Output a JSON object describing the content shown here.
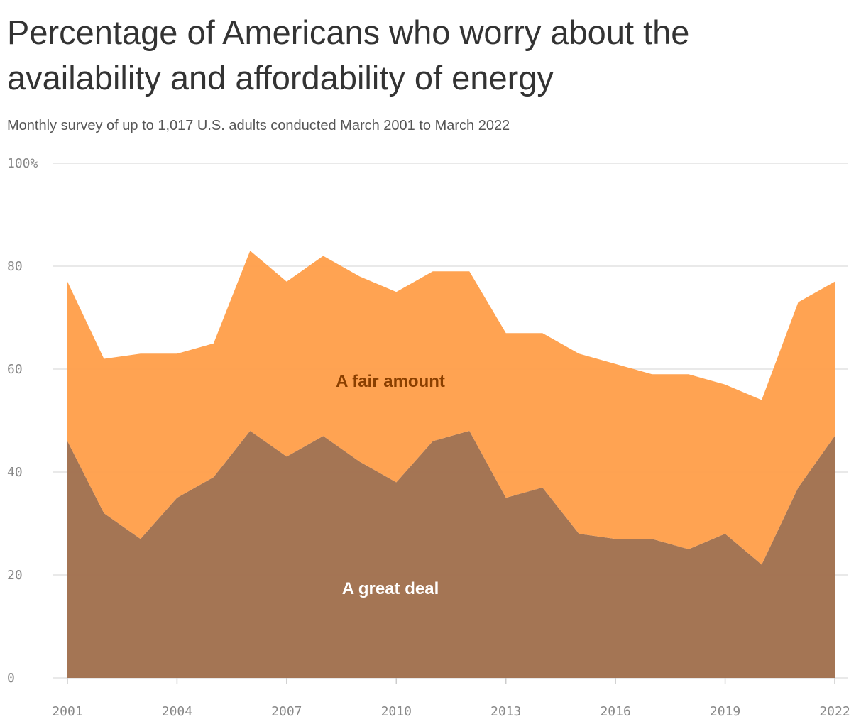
{
  "chart_data": {
    "type": "area",
    "stacked": true,
    "title": "Percentage of Americans who worry about the availability and affordability of energy",
    "subtitle": "Monthly survey of up to 1,017 U.S. adults conducted March 2001 to March 2022",
    "x": [
      2001,
      2002,
      2003,
      2004,
      2005,
      2006,
      2007,
      2008,
      2009,
      2010,
      2011,
      2012,
      2013,
      2014,
      2015,
      2016,
      2017,
      2018,
      2019,
      2020,
      2021,
      2022
    ],
    "series": [
      {
        "name": "A great deal",
        "color": "#a1714e",
        "label_color": "#ffffff",
        "values": [
          46,
          32,
          27,
          35,
          39,
          48,
          43,
          47,
          42,
          38,
          46,
          48,
          35,
          37,
          28,
          27,
          27,
          25,
          28,
          22,
          37,
          47
        ]
      },
      {
        "name": "A fair amount",
        "color": "#ffa04c",
        "label_color": "#8a3f00",
        "values": [
          31,
          30,
          36,
          28,
          26,
          35,
          34,
          35,
          36,
          37,
          33,
          31,
          32,
          30,
          35,
          34,
          32,
          34,
          29,
          32,
          36,
          30
        ]
      }
    ],
    "ylim": [
      0,
      100
    ],
    "xlim": [
      2001,
      2022
    ],
    "y_ticks": [
      {
        "value": 0,
        "label": "0"
      },
      {
        "value": 20,
        "label": "20"
      },
      {
        "value": 40,
        "label": "40"
      },
      {
        "value": 60,
        "label": "60"
      },
      {
        "value": 80,
        "label": "80"
      },
      {
        "value": 100,
        "label": "100%"
      }
    ],
    "x_ticks": [
      "2001",
      "2004",
      "2007",
      "2010",
      "2013",
      "2016",
      "2019",
      "2022"
    ],
    "grid": "horizontal",
    "legend": "inline labels"
  }
}
